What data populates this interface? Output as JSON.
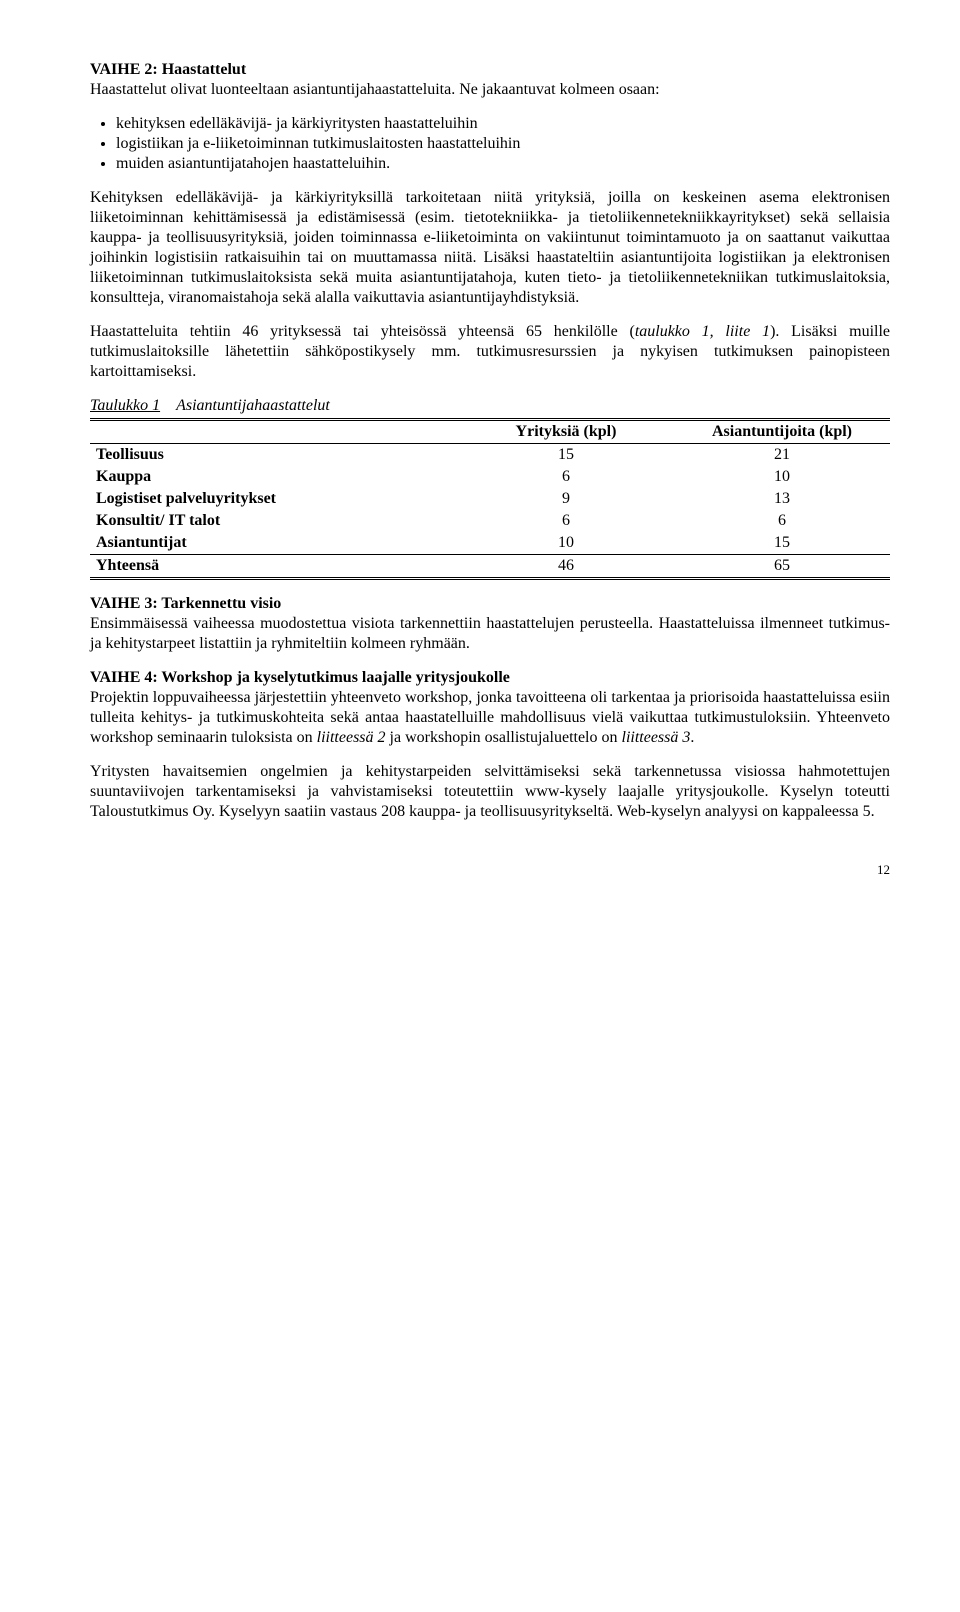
{
  "vaihe2": {
    "heading": "VAIHE 2: Haastattelut",
    "intro1": "Haastattelut olivat luonteeltaan asiantuntijahaastatteluita. Ne jakaantuvat kolmeen osaan:",
    "bullets": [
      "kehityksen edelläkävijä- ja kärkiyritysten haastatteluihin",
      "logistiikan ja e-liiketoiminnan tutkimuslaitosten haastatteluihin",
      "muiden asiantuntijatahojen haastatteluihin."
    ],
    "para2": "Kehityksen edelläkävijä- ja kärkiyrityksillä tarkoitetaan niitä yrityksiä, joilla on keskeinen asema elektronisen liiketoiminnan kehittämisessä ja edistämisessä (esim. tietotekniikka- ja tietoliikennetekniikkayritykset) sekä sellaisia kauppa- ja teollisuusyrityksiä, joiden toiminnassa e-liiketoiminta on vakiintunut toimintamuoto ja on saattanut vaikuttaa joihinkin logistisiin ratkaisuihin tai on muuttamassa niitä. Lisäksi haastateltiin asiantuntijoita logistiikan ja elektronisen liiketoiminnan tutkimuslaitoksista sekä muita asiantuntijatahoja, kuten tieto- ja tietoliikennetekniikan tutkimuslaitoksia, konsultteja, viranomaistahoja sekä alalla vaikuttavia asiantuntijayhdistyksiä.",
    "para3_a": "Haastatteluita tehtiin 46 yrityksessä tai yhteisössä yhteensä 65 henkilölle (",
    "para3_ref": "taulukko 1, liite 1",
    "para3_b": "). Lisäksi muille tutkimuslaitoksille lähetettiin sähköpostikysely mm. tutkimusresurssien ja nykyisen tutkimuksen painopisteen kartoittamiseksi."
  },
  "table": {
    "caption_num": "Taulukko 1",
    "caption_title": "Asiantuntijahaastattelut",
    "headers": [
      "",
      "Yrityksiä (kpl)",
      "Asiantuntijoita (kpl)"
    ],
    "rows": [
      [
        "Teollisuus",
        "15",
        "21"
      ],
      [
        "Kauppa",
        "6",
        "10"
      ],
      [
        "Logistiset palveluyritykset",
        "9",
        "13"
      ],
      [
        "Konsultit/ IT talot",
        "6",
        "6"
      ],
      [
        "Asiantuntijat",
        "10",
        "15"
      ],
      [
        "Yhteensä",
        "46",
        "65"
      ]
    ]
  },
  "vaihe3": {
    "heading": "VAIHE 3: Tarkennettu visio",
    "para": "Ensimmäisessä vaiheessa muodostettua visiota tarkennettiin haastattelujen perusteella. Haastatteluissa ilmenneet tutkimus- ja kehitystarpeet listattiin ja ryhmiteltiin kolmeen ryhmään."
  },
  "vaihe4": {
    "heading": "VAIHE 4: Workshop ja kyselytutkimus laajalle yritysjoukolle",
    "para1_a": "Projektin loppuvaiheessa järjestettiin yhteenveto workshop, jonka tavoitteena oli tarkentaa ja priorisoida haastatteluissa esiin tulleita kehitys- ja tutkimuskohteita sekä antaa haastatelluille mahdollisuus vielä vaikuttaa tutkimustuloksiin. Yhteenveto workshop seminaarin tuloksista on ",
    "para1_ref1": "liitteessä 2",
    "para1_mid": " ja workshopin osallistujaluettelo on ",
    "para1_ref2": "liitteessä 3",
    "para1_end": ".",
    "para2": "Yritysten havaitsemien ongelmien ja kehitystarpeiden selvittämiseksi sekä tarkennetussa visiossa hahmotettujen suuntaviivojen tarkentamiseksi ja vahvistamiseksi toteutettiin www-kysely laajalle yritysjoukolle. Kyselyn toteutti Taloustutkimus Oy. Kyselyyn saatiin vastaus 208 kauppa- ja teollisuusyritykseltä. Web-kyselyn analyysi on kappaleessa 5."
  },
  "pagenum": "12"
}
